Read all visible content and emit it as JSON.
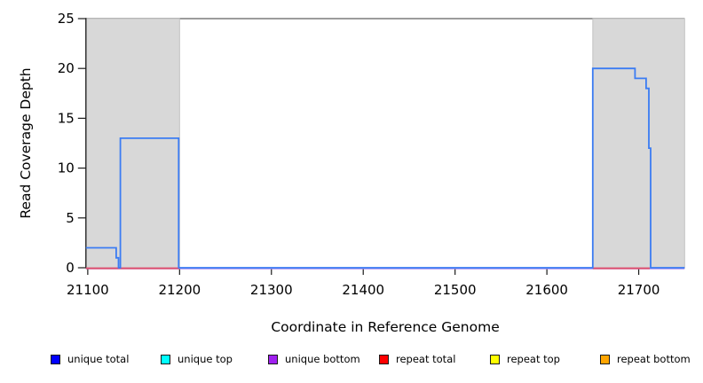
{
  "figure_title": "read coverage depth plot",
  "chart_data": {
    "type": "line",
    "subtype": "step-coverage",
    "title": "",
    "xlabel": "Coordinate in Reference Genome",
    "ylabel": "Read Coverage Depth",
    "xlim": [
      21098,
      21750
    ],
    "ylim": [
      0,
      25
    ],
    "x_ticks": [
      21100,
      21200,
      21300,
      21400,
      21500,
      21600,
      21700
    ],
    "y_ticks": [
      0,
      5,
      10,
      15,
      20,
      25
    ],
    "grid": false,
    "repeat_region_shading": {
      "fill": "#d8d8d8",
      "border": "#c2c2c2",
      "regions": [
        [
          21098,
          21200
        ],
        [
          21650,
          21750
        ]
      ]
    },
    "box_top_line_color": "#8e8e8e",
    "series": [
      {
        "name": "unique total",
        "draw_color": "#3b7cf3",
        "style": "step",
        "points": [
          [
            21098,
            2
          ],
          [
            21131,
            1
          ],
          [
            21133.5,
            0
          ],
          [
            21135.5,
            13
          ],
          [
            21199,
            0
          ],
          [
            21650,
            20
          ],
          [
            21696,
            19
          ],
          [
            21708,
            18
          ],
          [
            21711,
            12
          ],
          [
            21713,
            0
          ],
          [
            21750,
            0
          ]
        ]
      },
      {
        "name": "unique bottom",
        "draw_color": "#a58cf0",
        "style": "zero-line-segments",
        "value": 0,
        "segments": [
          [
            21098,
            21750
          ]
        ]
      },
      {
        "name": "repeat total",
        "draw_color": "#e0506e",
        "style": "zero-line-segments",
        "value": 0,
        "segments": [
          [
            21098,
            21200
          ],
          [
            21650,
            21712
          ]
        ]
      }
    ]
  },
  "legend": {
    "items": [
      {
        "label": "unique total",
        "color": "#0000ff"
      },
      {
        "label": "unique top",
        "color": "#00ffff"
      },
      {
        "label": "unique bottom",
        "color": "#a020f0"
      },
      {
        "label": "repeat total",
        "color": "#ff0000"
      },
      {
        "label": "repeat top",
        "color": "#ffff00"
      },
      {
        "label": "repeat bottom",
        "color": "#ffa500"
      }
    ]
  }
}
